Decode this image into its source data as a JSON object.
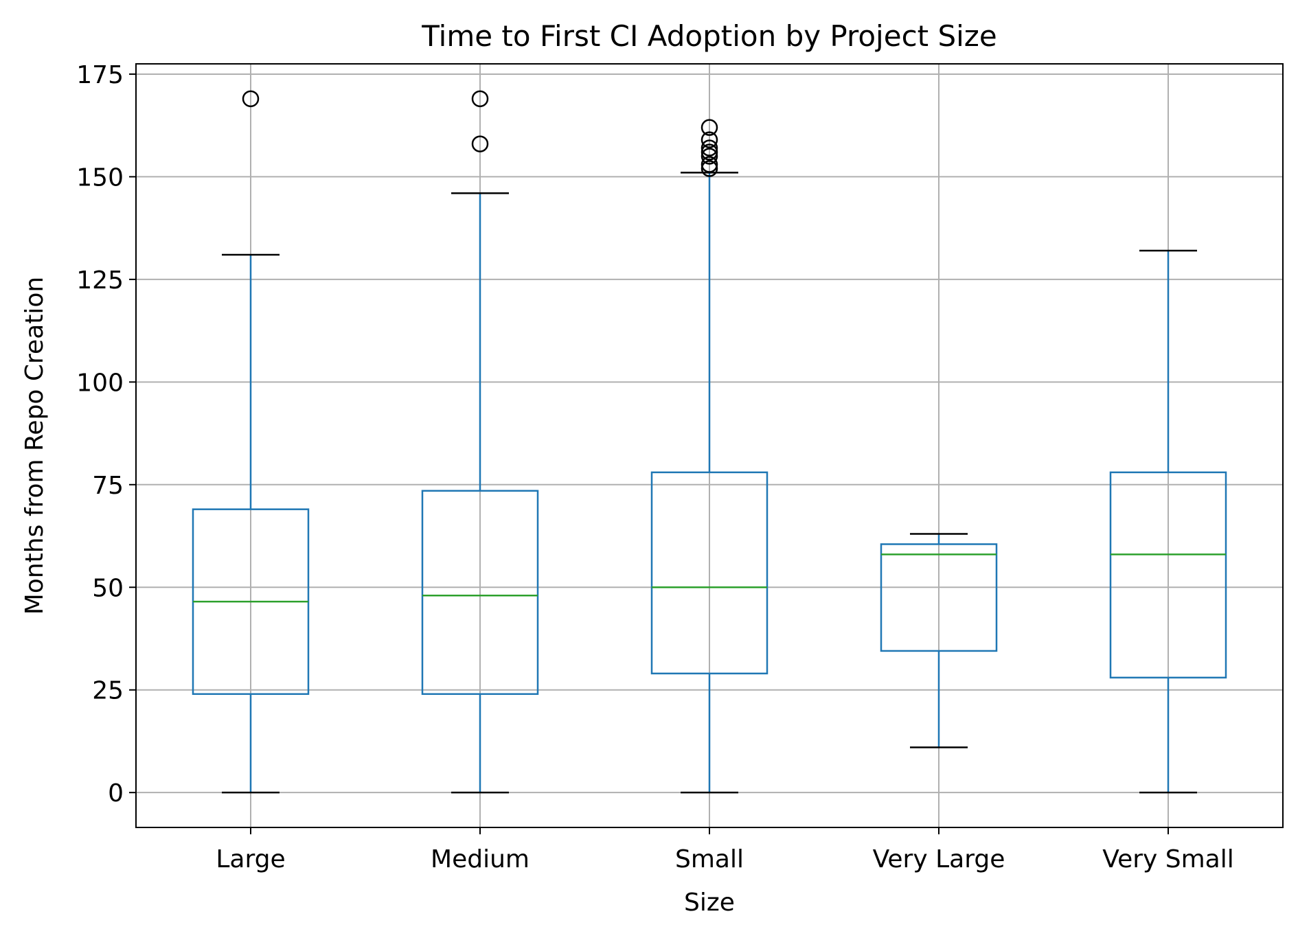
{
  "chart_data": {
    "type": "box",
    "title": "Time to First CI Adoption by Project Size",
    "xlabel": "Size",
    "ylabel": "Months from Repo Creation",
    "ylim": [
      -8.5,
      177.5
    ],
    "yticks": [
      0,
      25,
      50,
      75,
      100,
      125,
      150,
      175
    ],
    "grid": true,
    "categories": [
      "Large",
      "Medium",
      "Small",
      "Very Large",
      "Very Small"
    ],
    "boxes": [
      {
        "category": "Large",
        "whisker_low": 0,
        "q1": 24,
        "median": 46.5,
        "q3": 69,
        "whisker_high": 131,
        "outliers": [
          169
        ]
      },
      {
        "category": "Medium",
        "whisker_low": 0,
        "q1": 24,
        "median": 48,
        "q3": 73.5,
        "whisker_high": 146,
        "outliers": [
          158,
          169
        ]
      },
      {
        "category": "Small",
        "whisker_low": 0,
        "q1": 29,
        "median": 50,
        "q3": 78,
        "whisker_high": 151,
        "outliers": [
          152,
          153,
          155,
          156,
          157,
          159,
          162
        ]
      },
      {
        "category": "Very Large",
        "whisker_low": 11,
        "q1": 34.5,
        "median": 58,
        "q3": 60.5,
        "whisker_high": 63,
        "outliers": []
      },
      {
        "category": "Very Small",
        "whisker_low": 0,
        "q1": 28,
        "median": 58,
        "q3": 78,
        "whisker_high": 132,
        "outliers": []
      }
    ],
    "colors": {
      "box": "#1f77b4",
      "median": "#2ca02c",
      "whisker_cap": "#000000",
      "outlier": "#000000",
      "grid": "#b0b0b0"
    }
  }
}
